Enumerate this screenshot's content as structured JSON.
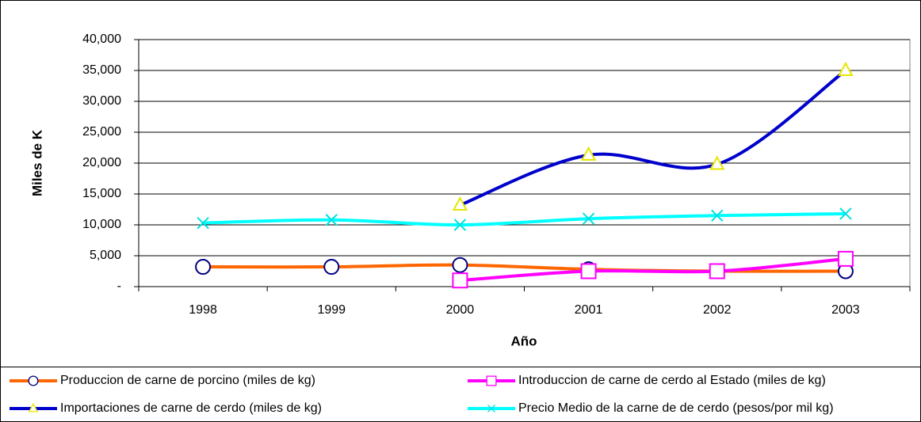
{
  "chart_data": {
    "type": "line",
    "x_label": "Año",
    "y_label": "Miles de K",
    "categories": [
      "1998",
      "1999",
      "2000",
      "2001",
      "2002",
      "2003"
    ],
    "series": [
      {
        "name": "Produccion de carne de porcino (miles de kg)",
        "color": "#ff6600",
        "marker": "circle",
        "marker_color": "#000080",
        "values": [
          3200,
          3200,
          3500,
          2800,
          2500,
          2500
        ]
      },
      {
        "name": "Introduccion de carne de cerdo al Estado (miles de kg)",
        "color": "#ff00ff",
        "marker": "square",
        "marker_color": "#ff00ff",
        "values": [
          null,
          null,
          1000,
          2500,
          2500,
          4500
        ]
      },
      {
        "name": "Importaciones de carne de cerdo (miles de kg)",
        "color": "#0000cc",
        "marker": "triangle",
        "marker_color": "#e6e600",
        "values": [
          null,
          null,
          13200,
          21300,
          19800,
          35000
        ]
      },
      {
        "name": "Precio Medio de la carne de de cerdo (pesos/por mil kg)",
        "color": "#00ffff",
        "marker": "x",
        "marker_color": "#00e0e0",
        "values": [
          10300,
          10800,
          10000,
          11000,
          11500,
          11800
        ]
      }
    ],
    "ylim": [
      0,
      40000
    ],
    "yticks": [
      {
        "value": 0,
        "label": "-"
      },
      {
        "value": 5000,
        "label": "5,000"
      },
      {
        "value": 10000,
        "label": "10,000"
      },
      {
        "value": 15000,
        "label": "15,000"
      },
      {
        "value": 20000,
        "label": "20,000"
      },
      {
        "value": 25000,
        "label": "25,000"
      },
      {
        "value": 30000,
        "label": "30,000"
      },
      {
        "value": 35000,
        "label": "35,000"
      },
      {
        "value": 40000,
        "label": "40,000"
      }
    ],
    "grid": true,
    "smooth": true,
    "legend": "bottom"
  }
}
